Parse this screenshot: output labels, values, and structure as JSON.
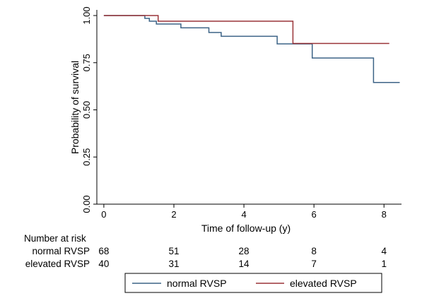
{
  "chart_data": {
    "type": "line",
    "step": true,
    "xlabel": "Time of follow-up (y)",
    "ylabel": "Probability of survival",
    "xlim": [
      -0.2,
      8.5
    ],
    "ylim": [
      0.0,
      1.03
    ],
    "x_ticks": [
      0,
      2,
      4,
      6,
      8
    ],
    "y_ticks": [
      0.0,
      0.25,
      0.5,
      0.75,
      1.0
    ],
    "x_tick_labels": [
      "0",
      "2",
      "4",
      "6",
      "8"
    ],
    "y_tick_labels": [
      "0.00",
      "0.25",
      "0.50",
      "0.75",
      "1.00"
    ],
    "grid": false,
    "series": [
      {
        "name": "normal RVSP",
        "color": "#3c6386",
        "points": [
          [
            0,
            1.0
          ],
          [
            1.17,
            1.0
          ],
          [
            1.17,
            0.985
          ],
          [
            1.3,
            0.985
          ],
          [
            1.3,
            0.97
          ],
          [
            1.5,
            0.97
          ],
          [
            1.5,
            0.955
          ],
          [
            2.2,
            0.955
          ],
          [
            2.2,
            0.935
          ],
          [
            3.0,
            0.935
          ],
          [
            3.0,
            0.91
          ],
          [
            3.35,
            0.91
          ],
          [
            3.35,
            0.89
          ],
          [
            4.95,
            0.89
          ],
          [
            4.95,
            0.85
          ],
          [
            5.95,
            0.85
          ],
          [
            5.95,
            0.775
          ],
          [
            7.7,
            0.775
          ],
          [
            7.7,
            0.645
          ],
          [
            8.45,
            0.645
          ]
        ]
      },
      {
        "name": "elevated RVSP",
        "color": "#9a3438",
        "points": [
          [
            0,
            1.0
          ],
          [
            1.55,
            1.0
          ],
          [
            1.55,
            0.97
          ],
          [
            5.4,
            0.97
          ],
          [
            5.4,
            0.852
          ],
          [
            8.15,
            0.852
          ]
        ]
      }
    ],
    "risk_table": {
      "title": "Number at risk",
      "times": [
        0,
        2,
        4,
        6,
        8
      ],
      "rows": [
        {
          "label": "normal RVSP",
          "values": [
            "68",
            "51",
            "28",
            "8",
            "4"
          ]
        },
        {
          "label": "elevated RVSP",
          "values": [
            "40",
            "31",
            "14",
            "7",
            "1"
          ]
        }
      ]
    },
    "legend_position": "bottom"
  }
}
